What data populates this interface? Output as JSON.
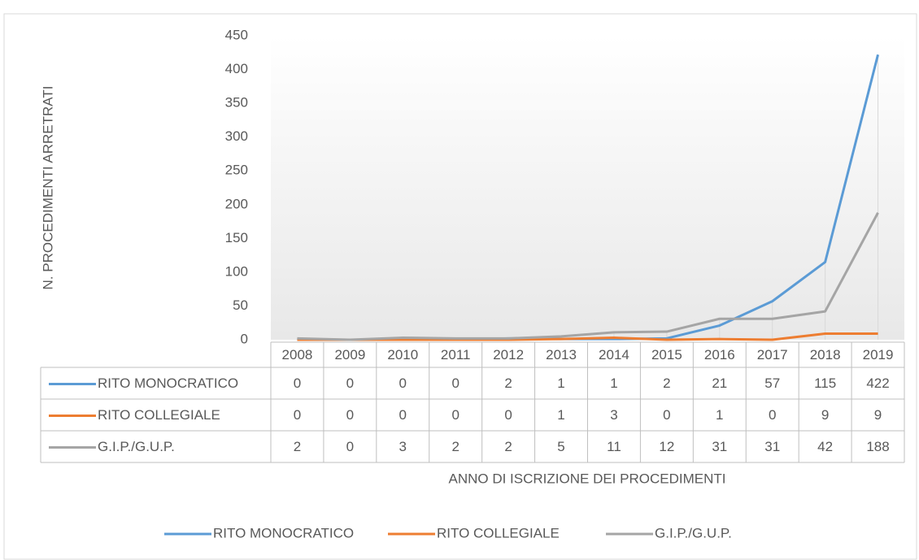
{
  "chart_data": {
    "type": "line",
    "categories": [
      "2008",
      "2009",
      "2010",
      "2011",
      "2012",
      "2013",
      "2014",
      "2015",
      "2016",
      "2017",
      "2018",
      "2019"
    ],
    "series": [
      {
        "name": "RITO MONOCRATICO",
        "color": "#5b9bd5",
        "values": [
          0,
          0,
          0,
          0,
          2,
          1,
          1,
          2,
          21,
          57,
          115,
          422
        ]
      },
      {
        "name": "RITO COLLEGIALE",
        "color": "#ed7d31",
        "values": [
          0,
          0,
          0,
          0,
          0,
          1,
          3,
          0,
          1,
          0,
          9,
          9
        ]
      },
      {
        "name": "G.I.P./G.U.P.",
        "color": "#a5a5a5",
        "values": [
          2,
          0,
          3,
          2,
          2,
          5,
          11,
          12,
          31,
          31,
          42,
          188
        ]
      }
    ],
    "ylim": [
      0,
      450
    ],
    "yticks": [
      0,
      50,
      100,
      150,
      200,
      250,
      300,
      350,
      400,
      450
    ],
    "y_label": "N. PROCEDIMENTI ARRETRATI",
    "x_label": "ANNO DI ISCRIZIONE DEI PROCEDIMENTI",
    "drop_lines": true,
    "legend": "bottom"
  }
}
